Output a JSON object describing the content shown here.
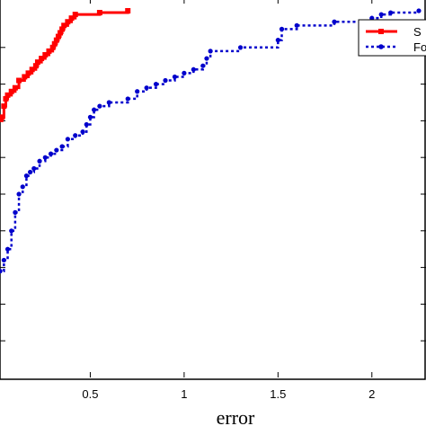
{
  "chart_data": {
    "type": "line",
    "xlabel": "error",
    "ylabel": "",
    "title": "",
    "xlim": [
      0,
      2.25
    ],
    "ylim": [
      0,
      1
    ],
    "x_ticks": [
      "0.5",
      "1",
      "1.5",
      "2"
    ],
    "x_tick_values": [
      0.5,
      1,
      1.5,
      2
    ],
    "legend": {
      "placement": "top-right",
      "entries": [
        "S",
        "Fo"
      ]
    },
    "series": [
      {
        "name": "S",
        "color": "#ff0000",
        "line_style": "solid",
        "marker": "square",
        "x": [
          0.0,
          0.03,
          0.04,
          0.05,
          0.06,
          0.08,
          0.1,
          0.12,
          0.15,
          0.17,
          0.19,
          0.21,
          0.22,
          0.24,
          0.26,
          0.28,
          0.3,
          0.31,
          0.32,
          0.33,
          0.34,
          0.35,
          0.36,
          0.38,
          0.4,
          0.42,
          0.55,
          0.7
        ],
        "y": [
          0.7,
          0.71,
          0.74,
          0.76,
          0.77,
          0.78,
          0.79,
          0.81,
          0.82,
          0.83,
          0.84,
          0.85,
          0.86,
          0.87,
          0.88,
          0.89,
          0.9,
          0.91,
          0.92,
          0.93,
          0.94,
          0.95,
          0.96,
          0.97,
          0.98,
          0.99,
          0.995,
          1.0
        ]
      },
      {
        "name": "Fo",
        "color": "#0000cc",
        "line_style": "dotted",
        "marker": "dot",
        "x": [
          0.0,
          0.02,
          0.04,
          0.06,
          0.08,
          0.1,
          0.12,
          0.14,
          0.16,
          0.18,
          0.2,
          0.23,
          0.26,
          0.29,
          0.32,
          0.35,
          0.38,
          0.42,
          0.46,
          0.48,
          0.5,
          0.52,
          0.55,
          0.6,
          0.7,
          0.75,
          0.8,
          0.85,
          0.9,
          0.95,
          1.0,
          1.05,
          1.1,
          1.12,
          1.14,
          1.3,
          1.5,
          1.52,
          1.6,
          1.8,
          2.0,
          2.05,
          2.1,
          2.25
        ],
        "y": [
          0.28,
          0.29,
          0.32,
          0.35,
          0.4,
          0.45,
          0.5,
          0.52,
          0.55,
          0.56,
          0.57,
          0.59,
          0.6,
          0.61,
          0.62,
          0.63,
          0.65,
          0.66,
          0.67,
          0.69,
          0.71,
          0.73,
          0.74,
          0.75,
          0.76,
          0.78,
          0.79,
          0.8,
          0.81,
          0.82,
          0.83,
          0.84,
          0.85,
          0.87,
          0.89,
          0.9,
          0.92,
          0.95,
          0.96,
          0.97,
          0.98,
          0.99,
          0.995,
          1.0
        ]
      }
    ]
  }
}
